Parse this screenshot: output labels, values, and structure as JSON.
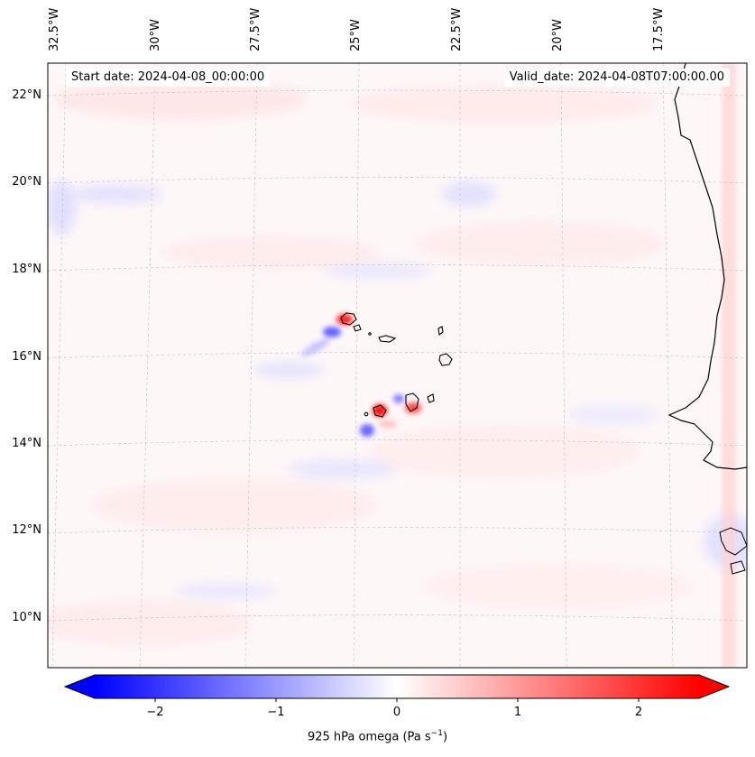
{
  "start_date": "Start date: 2024-04-08_00:00:00",
  "valid_date": "Valid_date: 2024-04-08T07:00:00.00",
  "lon_labels": [
    "32.5°W",
    "30°W",
    "27.5°W",
    "25°W",
    "22.5°W",
    "20°W",
    "17.5°W"
  ],
  "lat_labels": [
    "22°N",
    "20°N",
    "18°N",
    "16°N",
    "14°N",
    "12°N",
    "10°N"
  ],
  "colorbar": {
    "ticks": [
      "−2",
      "−1",
      "0",
      "1",
      "2"
    ],
    "tick_values": [
      -2,
      -1,
      0,
      1,
      2
    ],
    "range": [
      -2.5,
      2.5
    ],
    "extend": "both",
    "cmap": "bwr",
    "title": "925 hPa omega (Pa s",
    "title_sup": "−1",
    "title_end": ")",
    "low_color": "#0000ff",
    "mid_color": "#ffffff",
    "high_color": "#ff0000"
  },
  "chart_data": {
    "type": "heatmap",
    "title": "",
    "variable": "925 hPa omega",
    "units": "Pa s^-1",
    "lon_range": [
      -33,
      -16.5
    ],
    "lat_range": [
      9,
      23
    ],
    "value_range": [
      -2.5,
      2.5
    ],
    "grid": true
  }
}
